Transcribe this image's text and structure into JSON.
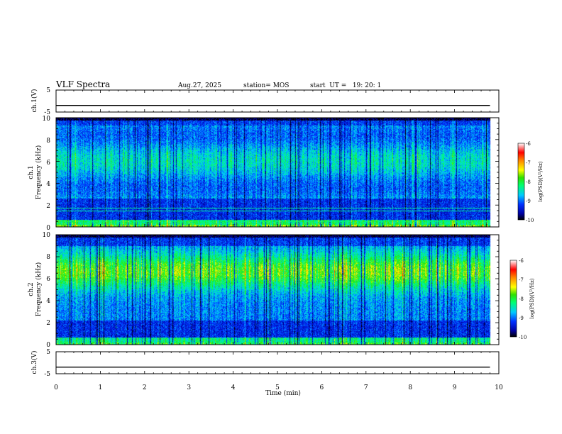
{
  "header": {
    "title": "VLF Spectra",
    "date": "Aug.27, 2025",
    "station": "station= MOS",
    "start": "start  UT =   19: 20: 1"
  },
  "chart_data": [
    {
      "type": "line",
      "name": "ch1-voltage",
      "ylabel": "ch.1(V)",
      "ylim": [
        -5,
        5
      ],
      "yticks": [
        "5",
        "-5"
      ],
      "series": [
        {
          "name": "ch.1",
          "level": -2,
          "end_time": 9.8
        }
      ]
    },
    {
      "type": "heatmap",
      "name": "ch1-spectrogram",
      "ylabel": "ch.1",
      "ylabel2": "Frequency (kHz)",
      "ylim": [
        0,
        10
      ],
      "yticks": [
        "0",
        "2",
        "4",
        "6",
        "8",
        "10"
      ],
      "xlim": [
        0,
        9.8
      ],
      "noise_lines_khz": [
        0.4,
        0.55,
        1.5,
        1.75
      ],
      "colorbar": {
        "label": "log(PSD)(V²/Hz)",
        "range": [
          -10,
          -6
        ],
        "ticks": [
          "-6",
          "-7",
          "-8",
          "-9",
          "-10"
        ]
      }
    },
    {
      "type": "heatmap",
      "name": "ch2-spectrogram",
      "ylabel": "ch.2",
      "ylabel2": "Frequency (kHz)",
      "ylim": [
        0,
        10
      ],
      "yticks": [
        "0",
        "2",
        "4",
        "6",
        "8",
        "10"
      ],
      "xlim": [
        0,
        9.8
      ],
      "colorbar": {
        "label": "log(PSD)(V²/Hz)",
        "range": [
          -10,
          -6
        ],
        "ticks": [
          "-6",
          "-7",
          "-8",
          "-9",
          "-10"
        ]
      }
    },
    {
      "type": "line",
      "name": "ch3-voltage",
      "ylabel": "ch.3(V)",
      "ylim": [
        -5,
        5
      ],
      "yticks": [
        "5",
        "-5"
      ],
      "series": [
        {
          "name": "ch.3",
          "level": -2,
          "end_time": 9.8
        }
      ]
    }
  ],
  "xaxis": {
    "label": "Time (min)",
    "min": 0,
    "max": 10,
    "ticks": [
      "0",
      "1",
      "2",
      "3",
      "4",
      "5",
      "6",
      "7",
      "8",
      "9",
      "10"
    ]
  }
}
